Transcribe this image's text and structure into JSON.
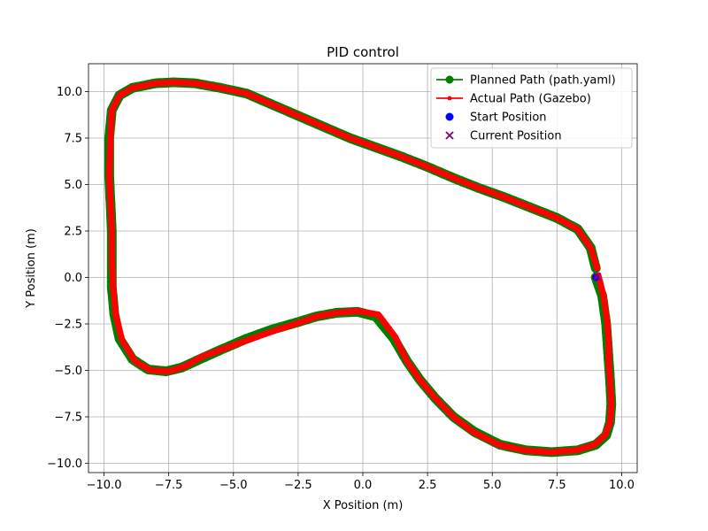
{
  "chart_data": {
    "type": "line",
    "title": "PID control",
    "xlabel": "X Position (m)",
    "ylabel": "Y Position (m)",
    "xlim": [
      -10.6,
      10.6
    ],
    "ylim": [
      -10.5,
      11.5
    ],
    "xticks": [
      -10.0,
      -7.5,
      -5.0,
      -2.5,
      0.0,
      2.5,
      5.0,
      7.5,
      10.0
    ],
    "xtick_labels": [
      "−10.0",
      "−7.5",
      "−5.0",
      "−2.5",
      "0.0",
      "2.5",
      "5.0",
      "7.5",
      "10.0"
    ],
    "yticks": [
      -10.0,
      -7.5,
      -5.0,
      -2.5,
      0.0,
      2.5,
      5.0,
      7.5,
      10.0
    ],
    "ytick_labels": [
      "−10.0",
      "−7.5",
      "−5.0",
      "−2.5",
      "0.0",
      "2.5",
      "5.0",
      "7.5",
      "10.0"
    ],
    "grid": true,
    "legend_position": "top-right",
    "series": [
      {
        "name": "Planned Path (path.yaml)",
        "color": "#008000",
        "marker": "circle",
        "x": [
          9.0,
          9.25,
          9.4,
          9.45,
          9.5,
          9.55,
          9.6,
          9.55,
          9.4,
          9.0,
          8.3,
          7.3,
          6.3,
          5.3,
          4.3,
          3.5,
          2.8,
          2.2,
          1.7,
          1.2,
          0.5,
          -0.2,
          -1.0,
          -1.8,
          -2.5,
          -3.5,
          -4.5,
          -5.5,
          -6.3,
          -7.0,
          -7.6,
          -8.3,
          -8.9,
          -9.4,
          -9.6,
          -9.7,
          -9.7,
          -9.7,
          -9.75,
          -9.8,
          -9.8,
          -9.7,
          -9.4,
          -8.9,
          -8.0,
          -7.3,
          -6.5,
          -5.5,
          -4.5,
          -3.5,
          -2.5,
          -1.5,
          -0.5,
          0.5,
          1.5,
          2.5,
          3.5,
          4.5,
          5.5,
          6.5,
          7.5,
          8.3,
          8.8,
          9.0
        ],
        "y": [
          0.0,
          -1.0,
          -2.5,
          -3.5,
          -4.5,
          -5.5,
          -6.8,
          -7.8,
          -8.5,
          -9.0,
          -9.3,
          -9.4,
          -9.3,
          -9.0,
          -8.3,
          -7.5,
          -6.5,
          -5.5,
          -4.5,
          -3.3,
          -2.1,
          -1.85,
          -1.9,
          -2.1,
          -2.4,
          -2.8,
          -3.3,
          -3.9,
          -4.4,
          -4.85,
          -5.05,
          -4.95,
          -4.4,
          -3.3,
          -2.0,
          -0.5,
          1.0,
          2.5,
          4.0,
          5.5,
          7.5,
          9.0,
          9.8,
          10.2,
          10.45,
          10.5,
          10.45,
          10.2,
          9.9,
          9.3,
          8.7,
          8.1,
          7.5,
          7.0,
          6.5,
          5.95,
          5.35,
          4.8,
          4.3,
          3.75,
          3.2,
          2.6,
          1.6,
          0.5
        ]
      },
      {
        "name": "Actual Path (Gazebo)",
        "color": "#ff0000",
        "marker": "point",
        "x": [
          9.1,
          9.3,
          9.45,
          9.5,
          9.5,
          9.55,
          9.6,
          9.55,
          9.35,
          8.95,
          8.25,
          7.25,
          6.25,
          5.25,
          4.25,
          3.5,
          2.8,
          2.2,
          1.7,
          1.25,
          0.6,
          -0.2,
          -1.0,
          -1.8,
          -2.6,
          -3.5,
          -4.5,
          -5.5,
          -6.2,
          -6.9,
          -7.5,
          -8.2,
          -8.8,
          -9.3,
          -9.55,
          -9.65,
          -9.7,
          -9.7,
          -9.75,
          -9.8,
          -9.75,
          -9.7,
          -9.4,
          -8.9,
          -8.0,
          -7.3,
          -6.5,
          -5.5,
          -4.5,
          -3.5,
          -2.5,
          -1.5,
          -0.5,
          0.5,
          1.5,
          2.5,
          3.5,
          4.5,
          5.5,
          6.5,
          7.5,
          8.3,
          8.8,
          9.05
        ],
        "y": [
          0.1,
          -1.0,
          -2.5,
          -3.5,
          -4.5,
          -5.5,
          -6.8,
          -7.8,
          -8.5,
          -9.0,
          -9.3,
          -9.4,
          -9.3,
          -9.0,
          -8.3,
          -7.5,
          -6.5,
          -5.5,
          -4.5,
          -3.2,
          -2.0,
          -1.8,
          -1.9,
          -2.1,
          -2.5,
          -2.9,
          -3.4,
          -3.9,
          -4.25,
          -4.8,
          -5.05,
          -5.0,
          -4.5,
          -3.4,
          -2.0,
          -0.5,
          1.0,
          2.5,
          4.0,
          5.5,
          7.5,
          9.0,
          9.8,
          10.2,
          10.45,
          10.5,
          10.45,
          10.2,
          9.9,
          9.3,
          8.7,
          8.1,
          7.5,
          7.0,
          6.5,
          5.95,
          5.35,
          4.8,
          4.3,
          3.75,
          3.2,
          2.6,
          1.6,
          0.5
        ]
      }
    ],
    "legend": [
      {
        "label": "Planned Path (path.yaml)",
        "color": "#008000",
        "symbol": "line-circle"
      },
      {
        "label": "Actual Path (Gazebo)",
        "color": "#ff0000",
        "symbol": "line-point"
      },
      {
        "label": "Start Position",
        "color": "#0000ff",
        "symbol": "dot"
      },
      {
        "label": "Current Position",
        "color": "#800080",
        "symbol": "x"
      }
    ],
    "start_position": {
      "x": 9.0,
      "y": 0.0
    },
    "current_position": {
      "x": 9.05,
      "y": 0.05
    }
  }
}
